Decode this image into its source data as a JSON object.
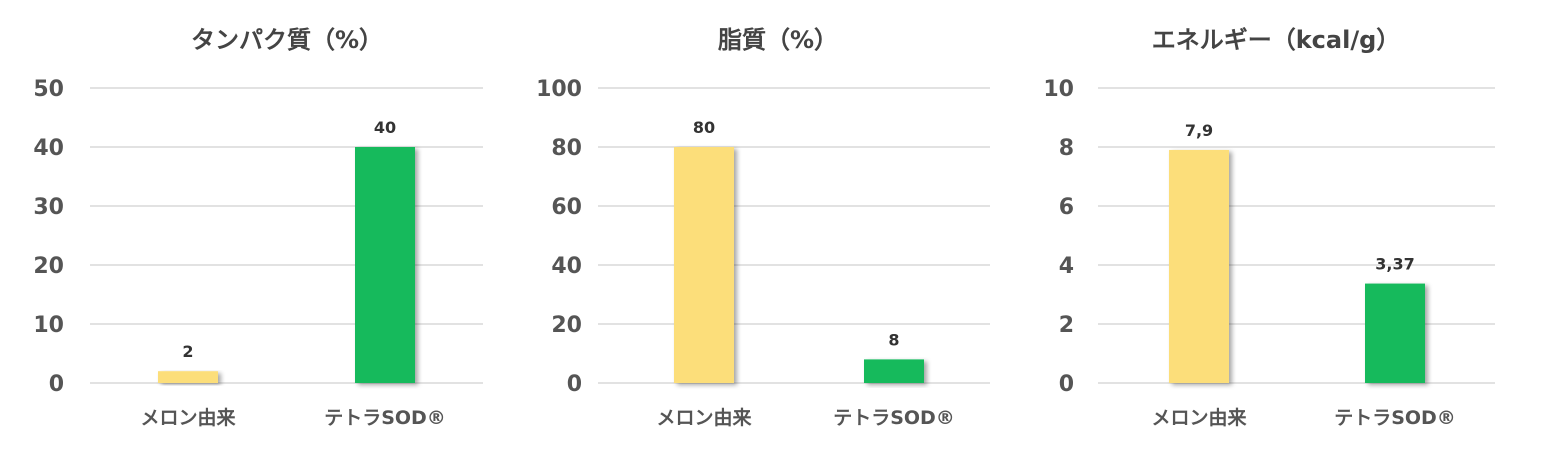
{
  "chart_data": [
    {
      "type": "bar",
      "title": "タンパク質（%）",
      "categories": [
        "メロン由来",
        "テトラSOD®"
      ],
      "values": [
        2,
        40
      ],
      "value_labels": [
        "2",
        "40"
      ],
      "ylim": [
        0,
        50
      ],
      "yticks": [
        "0",
        "10",
        "20",
        "30",
        "40",
        "50"
      ],
      "grid": true,
      "bar_colors": [
        "#FCDE7A",
        "#12BA5C"
      ]
    },
    {
      "type": "bar",
      "title": "脂質（%）",
      "categories": [
        "メロン由来",
        "テトラSOD®"
      ],
      "values": [
        80,
        8
      ],
      "value_labels": [
        "80",
        "8"
      ],
      "ylim": [
        0,
        100
      ],
      "yticks": [
        "0",
        "20",
        "40",
        "60",
        "80",
        "100"
      ],
      "grid": true,
      "bar_colors": [
        "#FCDE7A",
        "#12BA5C"
      ]
    },
    {
      "type": "bar",
      "title": "エネルギー（kcal/g）",
      "categories": [
        "メロン由来",
        "テトラSOD®"
      ],
      "values": [
        7.9,
        3.37
      ],
      "value_labels": [
        "7,9",
        "3,37"
      ],
      "ylim": [
        0,
        10
      ],
      "yticks": [
        "0",
        "2",
        "4",
        "6",
        "8",
        "10"
      ],
      "grid": true,
      "bar_colors": [
        "#FCDE7A",
        "#12BA5C"
      ]
    }
  ]
}
